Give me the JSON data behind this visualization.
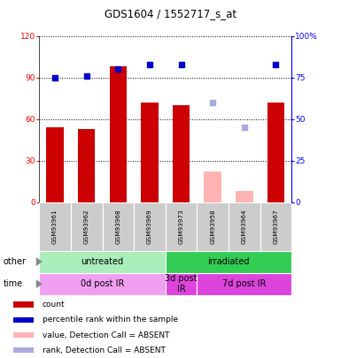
{
  "title": "GDS1604 / 1552717_s_at",
  "samples": [
    "GSM93961",
    "GSM93962",
    "GSM93968",
    "GSM93969",
    "GSM93973",
    "GSM93958",
    "GSM93964",
    "GSM93967"
  ],
  "bar_values": [
    54,
    53,
    98,
    72,
    70,
    22,
    8,
    72
  ],
  "bar_colors": [
    "#cc0000",
    "#cc0000",
    "#cc0000",
    "#cc0000",
    "#cc0000",
    "#ffb3b3",
    "#ffb3b3",
    "#cc0000"
  ],
  "rank_values": [
    75,
    76,
    80,
    83,
    83,
    60,
    45,
    83
  ],
  "rank_colors": [
    "#0000cc",
    "#0000cc",
    "#0000cc",
    "#0000cc",
    "#0000cc",
    "#aaaadd",
    "#aaaadd",
    "#0000cc"
  ],
  "ylim_left": [
    0,
    120
  ],
  "ylim_right": [
    0,
    100
  ],
  "yticks_left": [
    0,
    30,
    60,
    90,
    120
  ],
  "ytick_labels_left": [
    "0",
    "30",
    "60",
    "90",
    "120"
  ],
  "yticks_right": [
    0,
    25,
    50,
    75,
    100
  ],
  "ytick_labels_right": [
    "0",
    "25",
    "50",
    "75",
    "100%"
  ],
  "group_other": [
    {
      "label": "untreated",
      "start": 0,
      "end": 4,
      "color": "#aaeebb"
    },
    {
      "label": "irradiated",
      "start": 4,
      "end": 8,
      "color": "#33cc55"
    }
  ],
  "group_time": [
    {
      "label": "0d post IR",
      "start": 0,
      "end": 4,
      "color": "#f0a0f0"
    },
    {
      "label": "3d post\nIR",
      "start": 4,
      "end": 5,
      "color": "#dd44dd"
    },
    {
      "label": "7d post IR",
      "start": 5,
      "end": 8,
      "color": "#dd44dd"
    }
  ],
  "legend_items": [
    {
      "color": "#cc0000",
      "label": "count"
    },
    {
      "color": "#0000cc",
      "label": "percentile rank within the sample"
    },
    {
      "color": "#ffb3b3",
      "label": "value, Detection Call = ABSENT"
    },
    {
      "color": "#aaaadd",
      "label": "rank, Detection Call = ABSENT"
    }
  ],
  "background_color": "#ffffff",
  "plot_bg": "#ffffff",
  "bar_width": 0.55
}
